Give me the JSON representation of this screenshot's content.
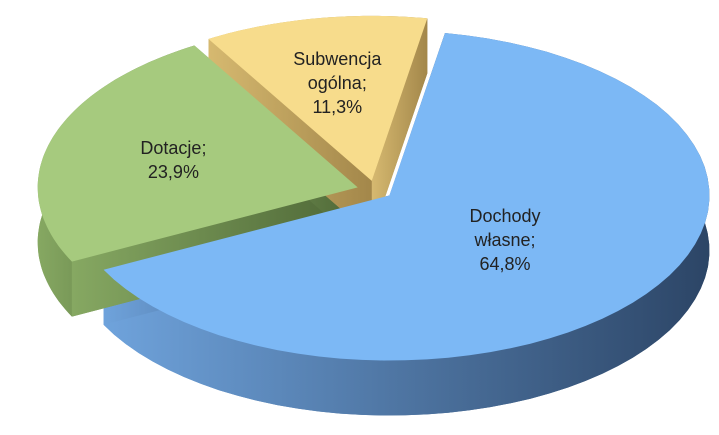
{
  "chart_data": {
    "type": "pie",
    "categories": [
      "Dochody własne;",
      "Dotacje;",
      "Subwencja ogólna;"
    ],
    "values": [
      64.8,
      23.9,
      11.3
    ],
    "value_labels": [
      "64,8%",
      "23,9%",
      "11,3%"
    ],
    "colors": [
      "#7cb8f5",
      "#a6ca7e",
      "#f7dc8c"
    ]
  }
}
